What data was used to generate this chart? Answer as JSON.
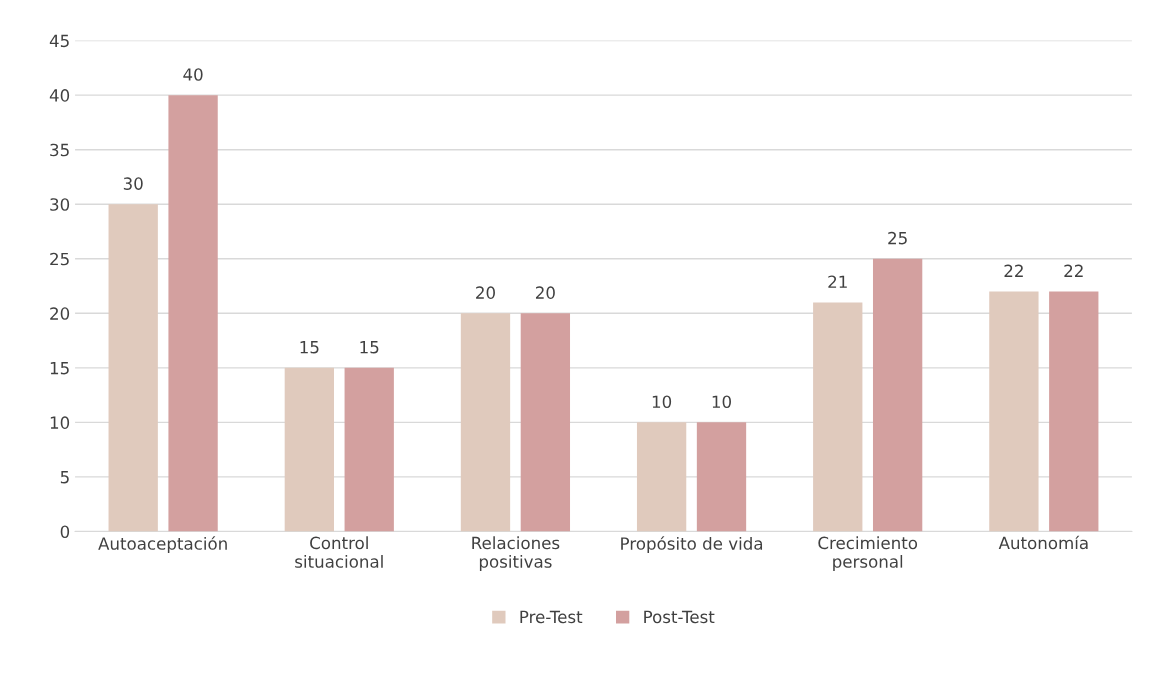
{
  "chart_data": {
    "type": "bar",
    "categories": [
      "Autoaceptación",
      "Control\nsituacional",
      "Relaciones\npositivas",
      "Propósito de vida",
      "Crecimiento\npersonal",
      "Autonomía"
    ],
    "series": [
      {
        "name": "Pre-Test",
        "color": "#e0cabd",
        "values": [
          30,
          15,
          20,
          10,
          21,
          22
        ]
      },
      {
        "name": "Post-Test",
        "color": "#d3a09f",
        "values": [
          40,
          15,
          20,
          10,
          25,
          22
        ]
      }
    ],
    "ylim": [
      0,
      45
    ],
    "yticks": [
      0,
      5,
      10,
      15,
      20,
      25,
      30,
      35,
      40,
      45
    ],
    "grid": "y",
    "legend": "bottom",
    "data_labels": true
  }
}
